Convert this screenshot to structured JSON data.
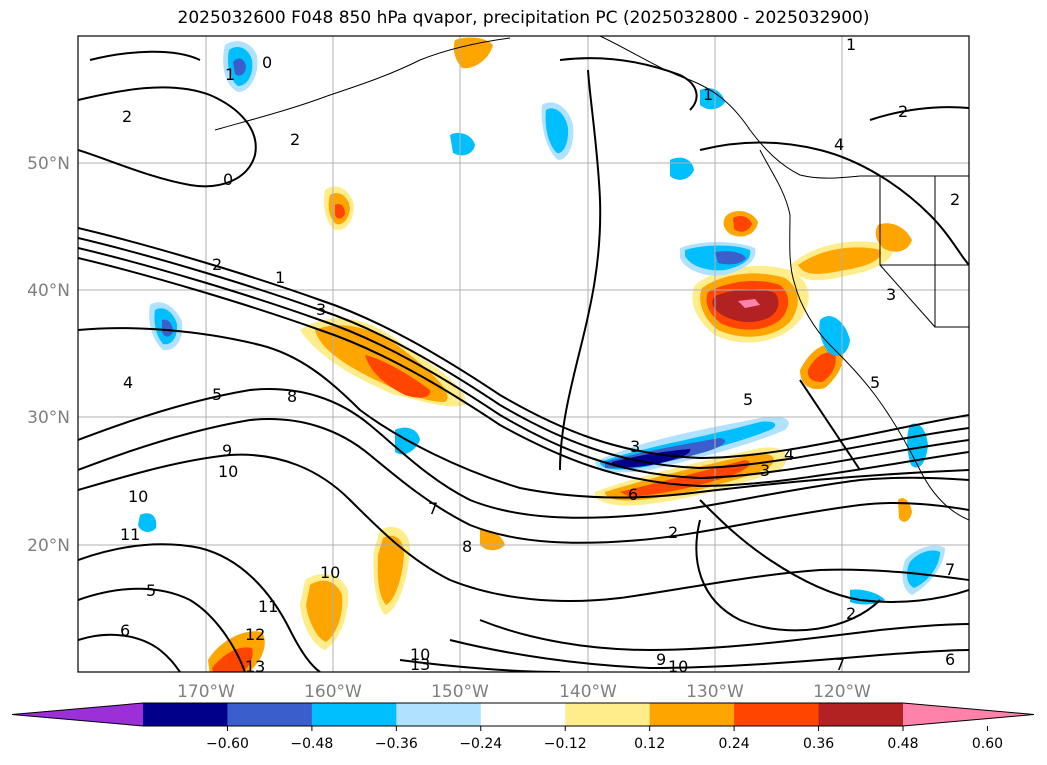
{
  "title": "2025032600 F048 850 hPa qvapor, precipitation PC (2025032800 - 2025032900)",
  "map": {
    "lat_labels": [
      "50°N",
      "40°N",
      "30°N",
      "20°N"
    ],
    "lon_labels": [
      "170°W",
      "160°W",
      "150°W",
      "140°W",
      "130°W",
      "120°W"
    ]
  },
  "contour_labels": [
    "0",
    "1",
    "2",
    "0",
    "2",
    "1",
    "2",
    "1",
    "3",
    "4",
    "5",
    "8",
    "9",
    "10",
    "7",
    "10",
    "11",
    "5",
    "6",
    "10",
    "11",
    "12",
    "13",
    "10",
    "13",
    "9",
    "10",
    "7",
    "2",
    "3",
    "4",
    "5",
    "3",
    "6",
    "2",
    "2",
    "4",
    "3",
    "5",
    "1",
    "2",
    "6",
    "7",
    "8"
  ],
  "colorbar": {
    "ticks": [
      "−0.60",
      "−0.48",
      "−0.36",
      "−0.24",
      "−0.12",
      "0.12",
      "0.24",
      "0.36",
      "0.48",
      "0.60"
    ],
    "colors": [
      "#9b30d9",
      "#00008b",
      "#3a5fcd",
      "#00bfff",
      "#b0e2ff",
      "#ffffff",
      "#ffec8b",
      "#ffa500",
      "#ff4500",
      "#b22222",
      "#ff82ab"
    ]
  }
}
